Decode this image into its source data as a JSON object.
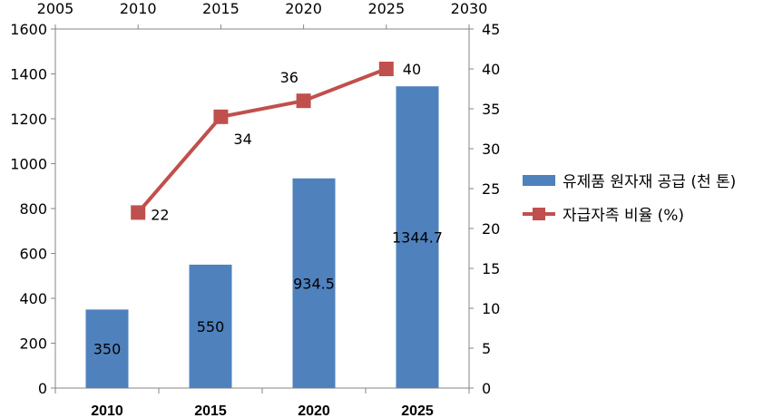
{
  "chart_data": {
    "type": "bar",
    "categories": [
      "2010",
      "2015",
      "2020",
      "2025"
    ],
    "series": [
      {
        "name": "유제품 원자재 공급 (천 톤)",
        "type": "bar",
        "axis": "left",
        "values": [
          350,
          550,
          934.5,
          1344.7
        ],
        "labels": [
          "350",
          "550",
          "934.5",
          "1344.7"
        ],
        "color": "#4f81bd"
      },
      {
        "name": "자급자족 비율 (%)",
        "type": "line",
        "axis": "right",
        "values": [
          22,
          34,
          36,
          40
        ],
        "labels": [
          "22",
          "34",
          "36",
          "40"
        ],
        "color": "#c0504d"
      }
    ],
    "y_left": {
      "min": 0,
      "max": 1600,
      "ticks": [
        "0",
        "200",
        "400",
        "600",
        "800",
        "1000",
        "1200",
        "1400",
        "1600"
      ]
    },
    "y_right": {
      "min": 0,
      "max": 45,
      "ticks": [
        "0",
        "5",
        "10",
        "15",
        "20",
        "25",
        "30",
        "35",
        "40",
        "45"
      ]
    },
    "x_top": {
      "min": 2005,
      "max": 2030,
      "ticks": [
        "2005",
        "2010",
        "2015",
        "2020",
        "2025",
        "2030"
      ]
    },
    "legend_position": "right",
    "grid": false
  }
}
